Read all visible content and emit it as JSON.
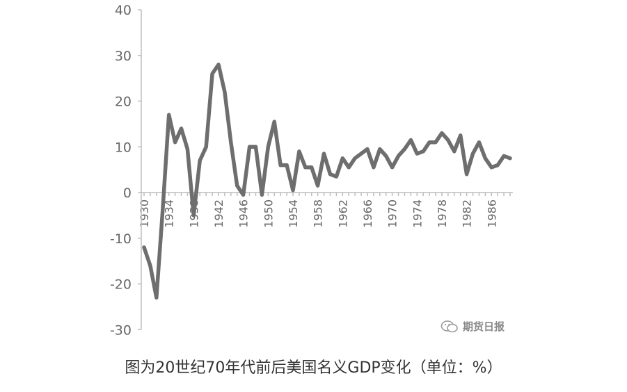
{
  "caption": "图为20世纪70年代前后美国名义GDP变化（单位：%）",
  "watermark": {
    "text": "期货日报",
    "icon": "wechat-icon"
  },
  "colors": {
    "line": "#6e6e6e",
    "axis": "#bdbdbd",
    "tick_text": "#666666"
  },
  "chart_data": {
    "type": "line",
    "title": "",
    "xlabel": "",
    "ylabel": "",
    "ylim": [
      -30,
      40
    ],
    "yticks": [
      "40",
      "30",
      "20",
      "10",
      "0",
      "-10",
      "-20",
      "-30"
    ],
    "xtick_labels": [
      "1930",
      "1934",
      "1938",
      "1942",
      "1946",
      "1950",
      "1954",
      "1958",
      "1962",
      "1966",
      "1970",
      "1974",
      "1978",
      "1982",
      "1986"
    ],
    "grid": false,
    "legend": "none",
    "x": [
      1930,
      1931,
      1932,
      1933,
      1934,
      1935,
      1936,
      1937,
      1938,
      1939,
      1940,
      1941,
      1942,
      1943,
      1944,
      1945,
      1946,
      1947,
      1948,
      1949,
      1950,
      1951,
      1952,
      1953,
      1954,
      1955,
      1956,
      1957,
      1958,
      1959,
      1960,
      1961,
      1962,
      1963,
      1964,
      1965,
      1966,
      1967,
      1968,
      1969,
      1970,
      1971,
      1972,
      1973,
      1974,
      1975,
      1976,
      1977,
      1978,
      1979,
      1980,
      1981,
      1982,
      1983,
      1984,
      1985,
      1986,
      1987,
      1988,
      1989
    ],
    "series": [
      {
        "values": [
          -12,
          -16,
          -23,
          -4,
          17,
          11,
          14,
          9.5,
          -5,
          7,
          10,
          26,
          28,
          22,
          11,
          1.5,
          -0.5,
          10,
          10,
          -0.5,
          10,
          15.5,
          6,
          6,
          0.5,
          9,
          5.5,
          5.5,
          1.5,
          8.5,
          4,
          3.5,
          7.5,
          5.5,
          7.5,
          8.5,
          9.5,
          5.5,
          9.5,
          8,
          5.5,
          8,
          9.5,
          11.5,
          8.5,
          9,
          11,
          11,
          13,
          11.5,
          9,
          12.5,
          4,
          8.5,
          11,
          7.5,
          5.5,
          6,
          8,
          7.5
        ]
      }
    ]
  }
}
